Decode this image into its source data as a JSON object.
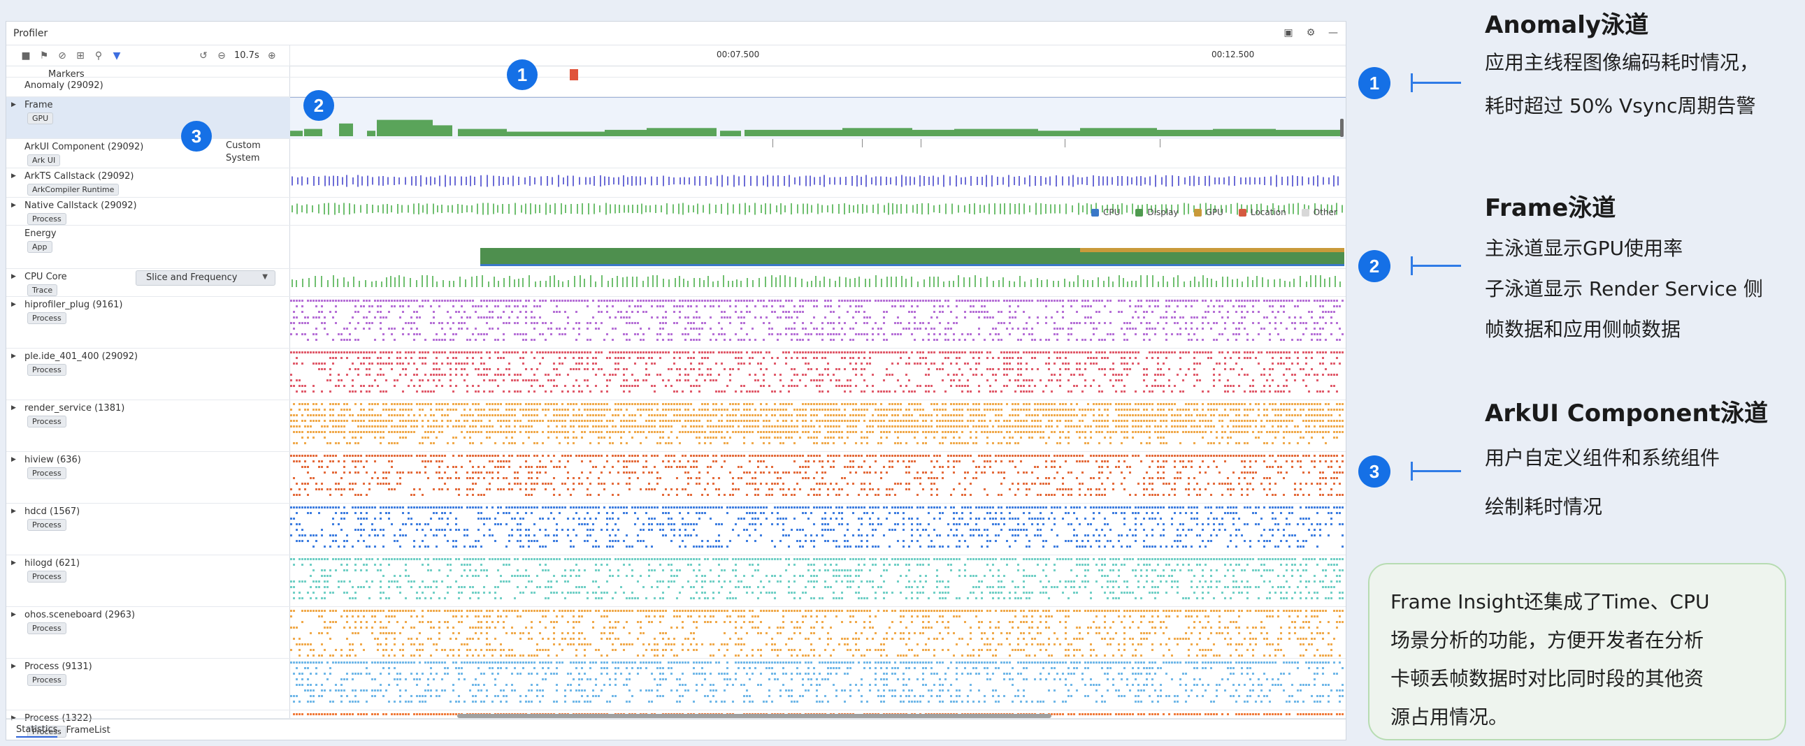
{
  "window": {
    "title": "Profiler",
    "zoom": "10.7s",
    "time_labels": [
      "00:07.500",
      "00:12.500"
    ]
  },
  "lanes": [
    {
      "name": "Markers",
      "badge": ""
    },
    {
      "name": "Anomaly (29092)",
      "badge": ""
    },
    {
      "name": "Frame",
      "badge": "GPU"
    },
    {
      "name": "ArkUI Component (29092)",
      "badge": "Ark UI",
      "extra1": "Custom",
      "extra2": "System"
    },
    {
      "name": "ArkTS Callstack (29092)",
      "badge": "ArkCompiler Runtime"
    },
    {
      "name": "Native Callstack (29092)",
      "badge": "Process"
    },
    {
      "name": "Energy",
      "badge": "App"
    },
    {
      "name": "CPU Core",
      "badge": "Trace",
      "dropdown": "Slice and Frequency"
    },
    {
      "name": "hiprofiler_plug (9161)",
      "badge": "Process"
    },
    {
      "name": "ple.ide_401_400 (29092)",
      "badge": "Process"
    },
    {
      "name": "render_service (1381)",
      "badge": "Process"
    },
    {
      "name": "hiview (636)",
      "badge": "Process"
    },
    {
      "name": "hdcd (1567)",
      "badge": "Process"
    },
    {
      "name": "hilogd (621)",
      "badge": "Process"
    },
    {
      "name": "ohos.sceneboard (2963)",
      "badge": "Process"
    },
    {
      "name": "Process (9131)",
      "badge": "Process"
    },
    {
      "name": "Process (1322)",
      "badge": "Process"
    }
  ],
  "legend": [
    "CPU",
    "Display",
    "GPU",
    "Location",
    "Other"
  ],
  "colors": {
    "accent": "#1570e6",
    "cpu": "#3a78c8",
    "display": "#4f9a4f",
    "gpu": "#c99a3a",
    "location": "#d55a40",
    "other": "#d8d8d8"
  },
  "bottom_tabs": [
    "Statistics",
    "FrameList"
  ],
  "callouts_on_screen": [
    "1",
    "2",
    "3"
  ],
  "annotations": [
    {
      "num": "1",
      "title": "Anomaly泳道",
      "lines": [
        "应用主线程图像编码耗时情况，",
        "耗时超过 50% Vsync周期告警"
      ]
    },
    {
      "num": "2",
      "title": "Frame泳道",
      "lines": [
        "主泳道显示GPU使用率",
        "子泳道显示 Render Service 侧",
        "帧数据和应用侧帧数据"
      ]
    },
    {
      "num": "3",
      "title": "ArkUI Component泳道",
      "lines": [
        "用户自定义组件和系统组件",
        "绘制耗时情况"
      ]
    }
  ],
  "note": [
    "Frame Insight还集成了Time、CPU",
    "场景分析的功能，方便开发者在分析",
    "卡顿丢帧数据时对比同时段的其他资",
    "源占用情况。"
  ]
}
